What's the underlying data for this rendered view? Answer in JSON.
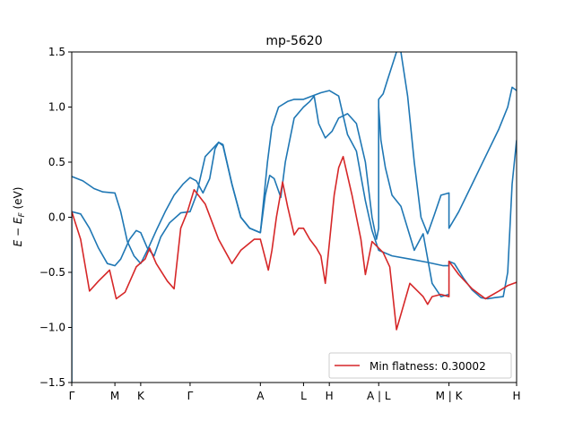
{
  "chart_data": {
    "type": "line",
    "title": "mp-5620",
    "ylabel": "E − E_F (eV)",
    "xlabel": "",
    "ylim": [
      -1.5,
      1.5
    ],
    "xlim": [
      0,
      1
    ],
    "yticks": [
      -1.5,
      -1.0,
      -0.5,
      0.0,
      0.5,
      1.0,
      1.5
    ],
    "ytick_labels": [
      "−1.5",
      "−1.0",
      "−0.5",
      "0.0",
      "0.5",
      "1.0",
      "1.5"
    ],
    "kpath": [
      {
        "label": "Γ",
        "x": 0.0
      },
      {
        "label": "M",
        "x": 0.097
      },
      {
        "label": "K",
        "x": 0.155
      },
      {
        "label": "Γ",
        "x": 0.266
      },
      {
        "label": "A",
        "x": 0.424
      },
      {
        "label": "L",
        "x": 0.521
      },
      {
        "label": "H",
        "x": 0.579
      },
      {
        "label": "A | L",
        "x": 0.69
      },
      {
        "label": "M | K",
        "x": 0.848
      },
      {
        "label": "H",
        "x": 1.0
      }
    ],
    "legend": {
      "label": "Min flatness: 0.30002",
      "location": "lower right"
    },
    "colors": {
      "bands": "#1f77b4",
      "flat_band": "#d62728"
    },
    "series": [
      {
        "role": "flat",
        "points": [
          [
            0.0,
            0.05
          ],
          [
            0.02,
            -0.2
          ],
          [
            0.04,
            -0.67
          ],
          [
            0.06,
            -0.58
          ],
          [
            0.085,
            -0.48
          ],
          [
            0.1,
            -0.74
          ],
          [
            0.12,
            -0.68
          ],
          [
            0.145,
            -0.45
          ],
          [
            0.165,
            -0.38
          ],
          [
            0.175,
            -0.28
          ],
          [
            0.19,
            -0.42
          ],
          [
            0.215,
            -0.58
          ],
          [
            0.23,
            -0.65
          ],
          [
            0.245,
            -0.1
          ],
          [
            0.26,
            0.05
          ],
          [
            0.275,
            0.25
          ],
          [
            0.3,
            0.12
          ],
          [
            0.33,
            -0.2
          ],
          [
            0.36,
            -0.42
          ],
          [
            0.38,
            -0.3
          ],
          [
            0.41,
            -0.2
          ],
          [
            0.424,
            -0.2
          ],
          [
            0.442,
            -0.48
          ],
          [
            0.45,
            -0.3
          ],
          [
            0.46,
            0.0
          ],
          [
            0.474,
            0.32
          ],
          [
            0.485,
            0.1
          ],
          [
            0.5,
            -0.16
          ],
          [
            0.51,
            -0.1
          ],
          [
            0.521,
            -0.1
          ],
          [
            0.535,
            -0.2
          ],
          [
            0.55,
            -0.28
          ],
          [
            0.56,
            -0.35
          ],
          [
            0.57,
            -0.6
          ],
          [
            0.575,
            -0.4
          ],
          [
            0.59,
            0.2
          ],
          [
            0.6,
            0.45
          ],
          [
            0.61,
            0.55
          ],
          [
            0.63,
            0.2
          ],
          [
            0.65,
            -0.2
          ],
          [
            0.66,
            -0.52
          ],
          [
            0.675,
            -0.22
          ],
          [
            0.69,
            -0.28
          ],
          [
            0.7,
            -0.32
          ],
          [
            0.715,
            -0.45
          ],
          [
            0.73,
            -1.02
          ],
          [
            0.76,
            -0.6
          ],
          [
            0.79,
            -0.72
          ],
          [
            0.8,
            -0.79
          ],
          [
            0.81,
            -0.72
          ],
          [
            0.83,
            -0.7
          ],
          [
            0.848,
            -0.72
          ],
          [
            0.848,
            -0.4
          ],
          [
            0.87,
            -0.52
          ],
          [
            0.9,
            -0.65
          ],
          [
            0.93,
            -0.74
          ],
          [
            0.96,
            -0.67
          ],
          [
            0.98,
            -0.62
          ],
          [
            1.0,
            -0.59
          ]
        ]
      },
      {
        "role": "band",
        "points": [
          [
            0.0,
            0.37
          ],
          [
            0.025,
            0.33
          ],
          [
            0.05,
            0.26
          ],
          [
            0.07,
            0.23
          ],
          [
            0.097,
            0.22
          ],
          [
            0.11,
            0.05
          ],
          [
            0.125,
            -0.22
          ],
          [
            0.14,
            -0.35
          ],
          [
            0.155,
            -0.42
          ],
          [
            0.17,
            -0.3
          ],
          [
            0.19,
            -0.12
          ],
          [
            0.21,
            0.05
          ],
          [
            0.23,
            0.2
          ],
          [
            0.25,
            0.3
          ],
          [
            0.266,
            0.36
          ],
          [
            0.28,
            0.33
          ],
          [
            0.295,
            0.22
          ],
          [
            0.31,
            0.35
          ],
          [
            0.322,
            0.62
          ],
          [
            0.33,
            0.68
          ],
          [
            0.34,
            0.65
          ],
          [
            0.36,
            0.3
          ],
          [
            0.38,
            0.0
          ],
          [
            0.4,
            -0.1
          ],
          [
            0.424,
            -0.14
          ],
          [
            0.43,
            0.1
          ],
          [
            0.44,
            0.5
          ],
          [
            0.45,
            0.82
          ],
          [
            0.465,
            1.0
          ],
          [
            0.485,
            1.05
          ],
          [
            0.5,
            1.07
          ],
          [
            0.521,
            1.07
          ],
          [
            0.54,
            1.1
          ],
          [
            0.56,
            1.13
          ],
          [
            0.579,
            1.15
          ],
          [
            0.6,
            1.1
          ],
          [
            0.62,
            0.75
          ],
          [
            0.64,
            0.6
          ],
          [
            0.66,
            0.15
          ],
          [
            0.675,
            -0.12
          ],
          [
            0.69,
            -0.3
          ],
          [
            0.72,
            -0.35
          ],
          [
            0.76,
            -0.38
          ],
          [
            0.8,
            -0.41
          ],
          [
            0.835,
            -0.44
          ],
          [
            0.848,
            -0.44
          ],
          [
            0.848,
            -0.4
          ],
          [
            0.86,
            -0.42
          ],
          [
            0.88,
            -0.55
          ],
          [
            0.9,
            -0.66
          ],
          [
            0.92,
            -0.73
          ],
          [
            0.935,
            -0.74
          ],
          [
            0.95,
            -0.73
          ],
          [
            0.97,
            -0.72
          ],
          [
            0.98,
            -0.5
          ],
          [
            0.99,
            0.3
          ],
          [
            1.0,
            0.7
          ]
        ]
      },
      {
        "role": "band",
        "points": [
          [
            0.0,
            0.05
          ],
          [
            0.02,
            0.03
          ],
          [
            0.04,
            -0.1
          ],
          [
            0.06,
            -0.28
          ],
          [
            0.08,
            -0.42
          ],
          [
            0.097,
            -0.44
          ],
          [
            0.11,
            -0.38
          ],
          [
            0.13,
            -0.2
          ],
          [
            0.145,
            -0.12
          ],
          [
            0.155,
            -0.14
          ],
          [
            0.17,
            -0.28
          ],
          [
            0.185,
            -0.35
          ],
          [
            0.2,
            -0.18
          ],
          [
            0.22,
            -0.05
          ],
          [
            0.245,
            0.04
          ],
          [
            0.266,
            0.05
          ],
          [
            0.28,
            0.2
          ],
          [
            0.3,
            0.55
          ],
          [
            0.33,
            0.68
          ],
          [
            0.34,
            0.66
          ],
          [
            0.36,
            0.3
          ],
          [
            0.38,
            0.0
          ],
          [
            0.4,
            -0.1
          ],
          [
            0.424,
            -0.14
          ],
          [
            0.435,
            0.2
          ],
          [
            0.445,
            0.38
          ],
          [
            0.455,
            0.35
          ],
          [
            0.47,
            0.18
          ],
          [
            0.48,
            0.5
          ],
          [
            0.5,
            0.9
          ],
          [
            0.521,
            1.0
          ],
          [
            0.535,
            1.05
          ],
          [
            0.545,
            1.1
          ],
          [
            0.555,
            0.85
          ],
          [
            0.57,
            0.72
          ],
          [
            0.585,
            0.78
          ],
          [
            0.6,
            0.9
          ],
          [
            0.62,
            0.94
          ],
          [
            0.64,
            0.85
          ],
          [
            0.66,
            0.5
          ],
          [
            0.675,
            0.0
          ],
          [
            0.685,
            -0.2
          ],
          [
            0.69,
            -0.1
          ],
          [
            0.69,
            1.07
          ],
          [
            0.7,
            1.12
          ],
          [
            0.71,
            1.25
          ],
          [
            0.73,
            1.5
          ]
        ]
      },
      {
        "role": "band",
        "points": [
          [
            0.0,
            -1.5
          ],
          [
            0.0,
            0.05
          ],
          [
            0.0,
            0.05
          ]
        ]
      },
      {
        "role": "band",
        "points": [
          [
            0.74,
            1.5
          ],
          [
            0.755,
            1.1
          ],
          [
            0.77,
            0.5
          ],
          [
            0.785,
            0.0
          ],
          [
            0.8,
            -0.15
          ],
          [
            0.815,
            0.02
          ],
          [
            0.83,
            0.2
          ],
          [
            0.848,
            0.22
          ],
          [
            0.848,
            -0.1
          ],
          [
            0.87,
            0.05
          ],
          [
            0.9,
            0.3
          ],
          [
            0.93,
            0.55
          ],
          [
            0.96,
            0.8
          ],
          [
            0.98,
            1.0
          ],
          [
            0.99,
            1.18
          ],
          [
            1.0,
            1.15
          ]
        ]
      },
      {
        "role": "band",
        "points": [
          [
            0.69,
            1.0
          ],
          [
            0.695,
            0.7
          ],
          [
            0.705,
            0.45
          ],
          [
            0.72,
            0.2
          ],
          [
            0.74,
            0.1
          ],
          [
            0.77,
            -0.3
          ],
          [
            0.79,
            -0.15
          ],
          [
            0.81,
            -0.6
          ],
          [
            0.83,
            -0.72
          ],
          [
            0.848,
            -0.7
          ]
        ]
      }
    ]
  }
}
